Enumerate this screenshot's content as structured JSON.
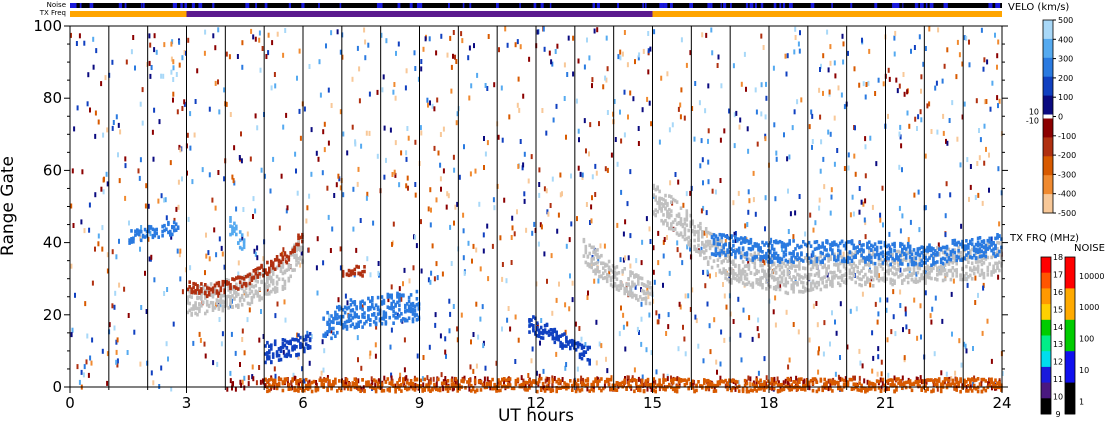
{
  "chart_data": {
    "type": "heatmap",
    "title": "",
    "xlabel": "UT hours",
    "ylabel": "Range Gate",
    "xlim": [
      0,
      24
    ],
    "ylim": [
      0,
      100
    ],
    "x_ticks": [
      "0",
      "3",
      "6",
      "9",
      "12",
      "15",
      "18",
      "21",
      "24"
    ],
    "y_ticks": [
      "0",
      "20",
      "40",
      "60",
      "80",
      "100"
    ],
    "grid": "vertical lines every 1 hour",
    "top_bars": {
      "noise_label": "Noise",
      "txfreq_label": "TX Freq",
      "txfreq_segments": [
        {
          "start": 0,
          "end": 3,
          "color": "#ffa500"
        },
        {
          "start": 3,
          "end": 15,
          "color": "#5b1a8e"
        },
        {
          "start": 15,
          "end": 24,
          "color": "#ffa500"
        }
      ]
    },
    "velocity_colorbar": {
      "title": "VELO (km/s)",
      "ticks": [
        "500",
        "400",
        "300",
        "200",
        "100",
        "0",
        "-100",
        "-200",
        "-300",
        "-400",
        "-500"
      ],
      "side_labels": [
        "10",
        "-10"
      ],
      "range": [
        -500,
        500
      ],
      "colors_positive": [
        "#0a0a80",
        "#1040c0",
        "#2a7ae0",
        "#55aaf0",
        "#a8d8f8"
      ],
      "colors_negative": [
        "#8b0000",
        "#b03010",
        "#d85a00",
        "#f08a30",
        "#f8c898"
      ]
    },
    "txfreq_colorbar": {
      "title": "TX FRQ (MHz)",
      "ticks": [
        "18",
        "17",
        "16",
        "15",
        "14",
        "13",
        "12",
        "11",
        "10",
        "9"
      ],
      "colors": [
        "#ff0000",
        "#ff5500",
        "#ff9900",
        "#ffd000",
        "#00cc00",
        "#00ee88",
        "#00ddee",
        "#1a1adc",
        "#4a1880",
        "#000000"
      ]
    },
    "noise_colorbar": {
      "title": "NOISE",
      "ticks": [
        "10000",
        "1000",
        "100",
        "10",
        "1"
      ],
      "colors": [
        "#ff0000",
        "#ffaa00",
        "#00cc00",
        "#1010ee",
        "#000000"
      ]
    },
    "ground_scatter_color": "#c0c0c0",
    "features": [
      {
        "kind": "ground",
        "points": [
          [
            3.0,
            24
          ],
          [
            3.5,
            25
          ],
          [
            4.5,
            27
          ],
          [
            5.5,
            32
          ],
          [
            6.0,
            40
          ]
        ],
        "width": 7
      },
      {
        "kind": "ground",
        "points": [
          [
            13.2,
            38
          ],
          [
            14.0,
            31
          ],
          [
            15.0,
            26
          ]
        ],
        "width": 6
      },
      {
        "kind": "ground",
        "points": [
          [
            15.0,
            53
          ],
          [
            15.5,
            48
          ],
          [
            16.3,
            40
          ],
          [
            17.0,
            34
          ],
          [
            18.5,
            31
          ],
          [
            20.0,
            33
          ],
          [
            22.0,
            34
          ],
          [
            24.0,
            36
          ]
        ],
        "width": 8
      },
      {
        "kind": "velocity",
        "velocity": 150,
        "points": [
          [
            5.0,
            10
          ],
          [
            5.6,
            11
          ],
          [
            6.2,
            14
          ]
        ],
        "width": 5
      },
      {
        "kind": "velocity",
        "velocity": 200,
        "points": [
          [
            6.5,
            17
          ],
          [
            7.3,
            21
          ],
          [
            8.2,
            22
          ],
          [
            9.0,
            23
          ]
        ],
        "width": 7
      },
      {
        "kind": "velocity",
        "velocity": 150,
        "points": [
          [
            11.8,
            18
          ],
          [
            12.6,
            14
          ],
          [
            13.4,
            9
          ]
        ],
        "width": 4
      },
      {
        "kind": "velocity",
        "velocity": 200,
        "points": [
          [
            16.5,
            40
          ],
          [
            18.0,
            38
          ],
          [
            20.0,
            38
          ],
          [
            22.0,
            37
          ],
          [
            24.0,
            40
          ]
        ],
        "width": 5
      },
      {
        "kind": "velocity",
        "velocity": 300,
        "points": [
          [
            4.1,
            45
          ],
          [
            4.5,
            39
          ]
        ],
        "width": 4
      },
      {
        "kind": "velocity",
        "velocity": 200,
        "points": [
          [
            1.5,
            42
          ],
          [
            2.8,
            45
          ]
        ],
        "width": 3
      },
      {
        "kind": "velocity",
        "velocity": -150,
        "points": [
          [
            3.0,
            28
          ],
          [
            3.6,
            27
          ],
          [
            4.5,
            30
          ],
          [
            5.5,
            36
          ],
          [
            6.0,
            43
          ]
        ],
        "width": 3
      },
      {
        "kind": "velocity",
        "velocity": -150,
        "points": [
          [
            7.0,
            33
          ],
          [
            7.6,
            32
          ]
        ],
        "width": 3
      },
      {
        "kind": "velocity",
        "velocity": -200,
        "points": [
          [
            5.0,
            1
          ],
          [
            24.0,
            1
          ]
        ],
        "width": 3
      }
    ]
  }
}
